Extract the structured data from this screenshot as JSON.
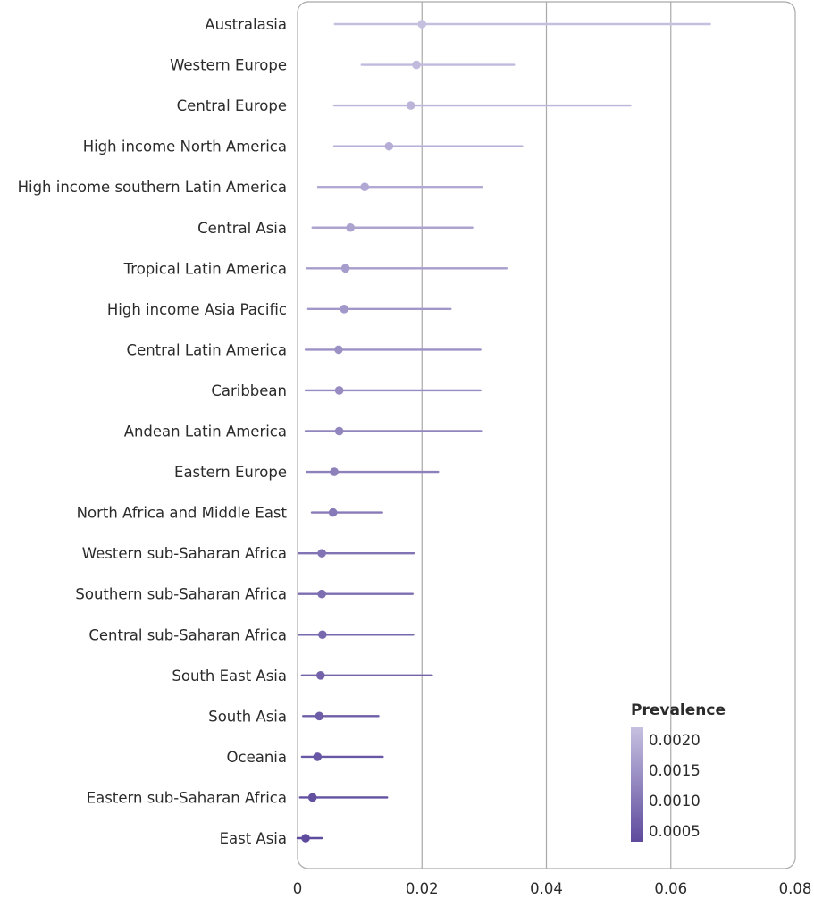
{
  "chart_data": {
    "type": "scatter",
    "subtype": "forest-plot",
    "title": "",
    "xlabel": "",
    "ylabel": "",
    "xlim": [
      0,
      0.08
    ],
    "x_ticks": [
      "0",
      "0.02",
      "0.04",
      "0.06",
      "0.08"
    ],
    "x_tick_values": [
      0,
      0.02,
      0.04,
      0.06,
      0.08
    ],
    "grid": "vertical",
    "legend": {
      "title": "Prevalence",
      "placement": "bottom-right",
      "labels": [
        "0.0020",
        "0.0015",
        "0.0010",
        "0.0005"
      ],
      "color_light": "#c6c0e0",
      "color_dark": "#5e4b9d"
    },
    "rows": [
      {
        "region": "Australasia",
        "estimate": 0.02,
        "lower": 0.006,
        "upper": 0.0663
      },
      {
        "region": "Western Europe",
        "estimate": 0.0191,
        "lower": 0.0103,
        "upper": 0.0348
      },
      {
        "region": "Central Europe",
        "estimate": 0.0182,
        "lower": 0.0059,
        "upper": 0.0535
      },
      {
        "region": "High income North America",
        "estimate": 0.0147,
        "lower": 0.0059,
        "upper": 0.0361
      },
      {
        "region": "High income southern Latin America",
        "estimate": 0.0108,
        "lower": 0.0033,
        "upper": 0.0296
      },
      {
        "region": "Central Asia",
        "estimate": 0.0085,
        "lower": 0.0024,
        "upper": 0.0281
      },
      {
        "region": "Tropical Latin America",
        "estimate": 0.0077,
        "lower": 0.0015,
        "upper": 0.0336
      },
      {
        "region": "High income Asia Pacific",
        "estimate": 0.0075,
        "lower": 0.0017,
        "upper": 0.0246
      },
      {
        "region": "Central Latin America",
        "estimate": 0.0066,
        "lower": 0.0013,
        "upper": 0.0294
      },
      {
        "region": "Caribbean",
        "estimate": 0.0067,
        "lower": 0.0013,
        "upper": 0.0294
      },
      {
        "region": "Andean Latin America",
        "estimate": 0.0067,
        "lower": 0.0013,
        "upper": 0.0295
      },
      {
        "region": "Eastern Europe",
        "estimate": 0.0059,
        "lower": 0.0015,
        "upper": 0.0226
      },
      {
        "region": "North Africa and Middle East",
        "estimate": 0.0057,
        "lower": 0.0023,
        "upper": 0.0136
      },
      {
        "region": "Western sub-Saharan Africa",
        "estimate": 0.0039,
        "lower": 0.0002,
        "upper": 0.0187
      },
      {
        "region": "Southern sub-Saharan Africa",
        "estimate": 0.0039,
        "lower": 0.0002,
        "upper": 0.0185
      },
      {
        "region": "Central sub-Saharan Africa",
        "estimate": 0.004,
        "lower": 0.0002,
        "upper": 0.0186
      },
      {
        "region": "South East Asia",
        "estimate": 0.0037,
        "lower": 0.0007,
        "upper": 0.0216
      },
      {
        "region": "South Asia",
        "estimate": 0.0035,
        "lower": 0.0009,
        "upper": 0.013
      },
      {
        "region": "Oceania",
        "estimate": 0.0032,
        "lower": 0.0007,
        "upper": 0.0137
      },
      {
        "region": "Eastern sub-Saharan Africa",
        "estimate": 0.0024,
        "lower": 0.0004,
        "upper": 0.0144
      },
      {
        "region": "East Asia",
        "estimate": 0.0013,
        "lower": 0.0,
        "upper": 0.0039
      }
    ]
  }
}
